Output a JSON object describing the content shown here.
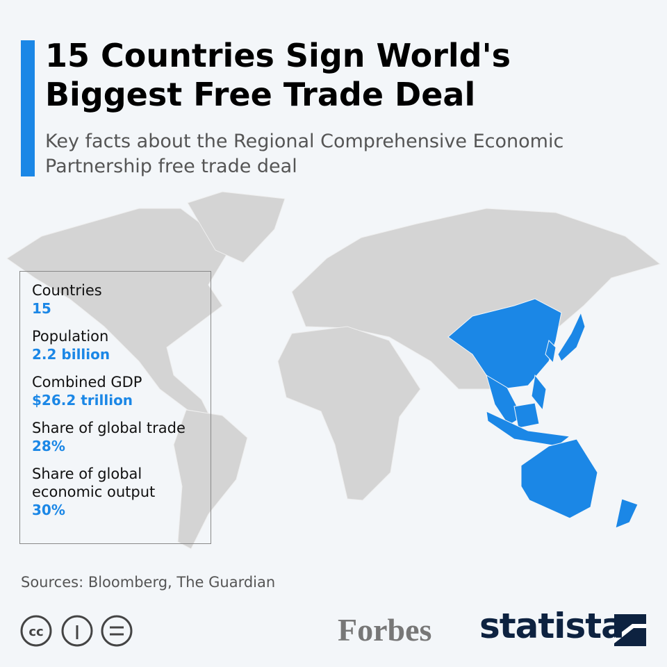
{
  "header": {
    "title": "15 Countries Sign World's Biggest Free Trade Deal",
    "subtitle": "Key facts about the Regional Comprehensive Economic Partnership free trade deal"
  },
  "facts": [
    {
      "label": "Countries",
      "value": "15"
    },
    {
      "label": "Population",
      "value": "2.2 billion"
    },
    {
      "label": "Combined GDP",
      "value": "$26.2 trillion"
    },
    {
      "label": "Share of global trade",
      "value": "28%"
    },
    {
      "label": "Share of global economic output",
      "value": "30%"
    }
  ],
  "footer": {
    "sources": "Sources: Bloomberg, The Guardian",
    "partner": "Forbes",
    "brand": "statista"
  }
}
